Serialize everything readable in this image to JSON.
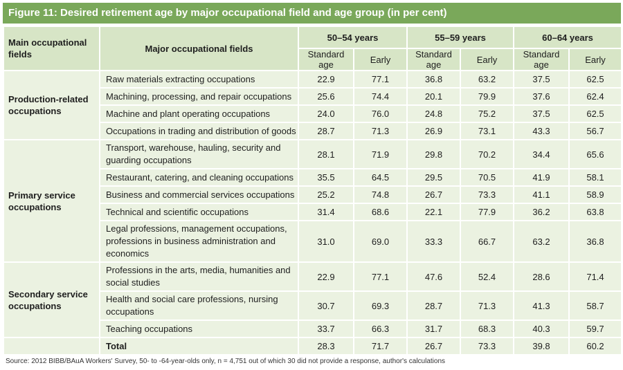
{
  "title": "Figure 11: Desired retirement age by major occupational field and age group (in per cent)",
  "header": {
    "main_fields": "Main occupational fields",
    "major_fields": "Major occupational fields",
    "age_groups": [
      "50–54 years",
      "55–59 years",
      "60–64 years"
    ],
    "standard": "Standard age",
    "early": "Early"
  },
  "groups": [
    {
      "label": "Production-related occupations",
      "rows": [
        {
          "field": "Raw materials extracting occupations",
          "values": [
            "22.9",
            "77.1",
            "36.8",
            "63.2",
            "37.5",
            "62.5"
          ]
        },
        {
          "field": "Machining, processing, and repair occupations",
          "values": [
            "25.6",
            "74.4",
            "20.1",
            "79.9",
            "37.6",
            "62.4"
          ]
        },
        {
          "field": "Machine and plant operating occupations",
          "values": [
            "24.0",
            "76.0",
            "24.8",
            "75.2",
            "37.5",
            "62.5"
          ]
        },
        {
          "field": "Occupations in trading and distribution of goods",
          "values": [
            "28.7",
            "71.3",
            "26.9",
            "73.1",
            "43.3",
            "56.7"
          ]
        }
      ]
    },
    {
      "label": "Primary service occupations",
      "rows": [
        {
          "field": "Transport, warehouse, hauling, security and guarding occupations",
          "values": [
            "28.1",
            "71.9",
            "29.8",
            "70.2",
            "34.4",
            "65.6"
          ]
        },
        {
          "field": "Restaurant, catering, and cleaning occupations",
          "values": [
            "35.5",
            "64.5",
            "29.5",
            "70.5",
            "41.9",
            "58.1"
          ]
        },
        {
          "field": "Business and commercial services occupations",
          "values": [
            "25.2",
            "74.8",
            "26.7",
            "73.3",
            "41.1",
            "58.9"
          ]
        },
        {
          "field": "Technical and scientific occupations",
          "values": [
            "31.4",
            "68.6",
            "22.1",
            "77.9",
            "36.2",
            "63.8"
          ]
        },
        {
          "field": "Legal professions, management occupations, professions in business administration and economics",
          "values": [
            "31.0",
            "69.0",
            "33.3",
            "66.7",
            "63.2",
            "36.8"
          ]
        }
      ]
    },
    {
      "label": "Secondary service occupations",
      "rows": [
        {
          "field": "Professions in the arts, media, humanities and social studies",
          "values": [
            "22.9",
            "77.1",
            "47.6",
            "52.4",
            "28.6",
            "71.4"
          ]
        },
        {
          "field": "Health and social care professions, nursing occupations",
          "values": [
            "30.7",
            "69.3",
            "28.7",
            "71.3",
            "41.3",
            "58.7"
          ]
        },
        {
          "field": "Teaching occupations",
          "values": [
            "33.7",
            "66.3",
            "31.7",
            "68.3",
            "40.3",
            "59.7"
          ]
        }
      ]
    }
  ],
  "total": {
    "label": "Total",
    "values": [
      "28.3",
      "71.7",
      "26.7",
      "73.3",
      "39.8",
      "60.2"
    ]
  },
  "source": "Source: 2012 BIBB/BAuA Workers' Survey, 50- to -64-year-olds only, n = 4,751 out of which 30 did not provide a response, author's calculations"
}
